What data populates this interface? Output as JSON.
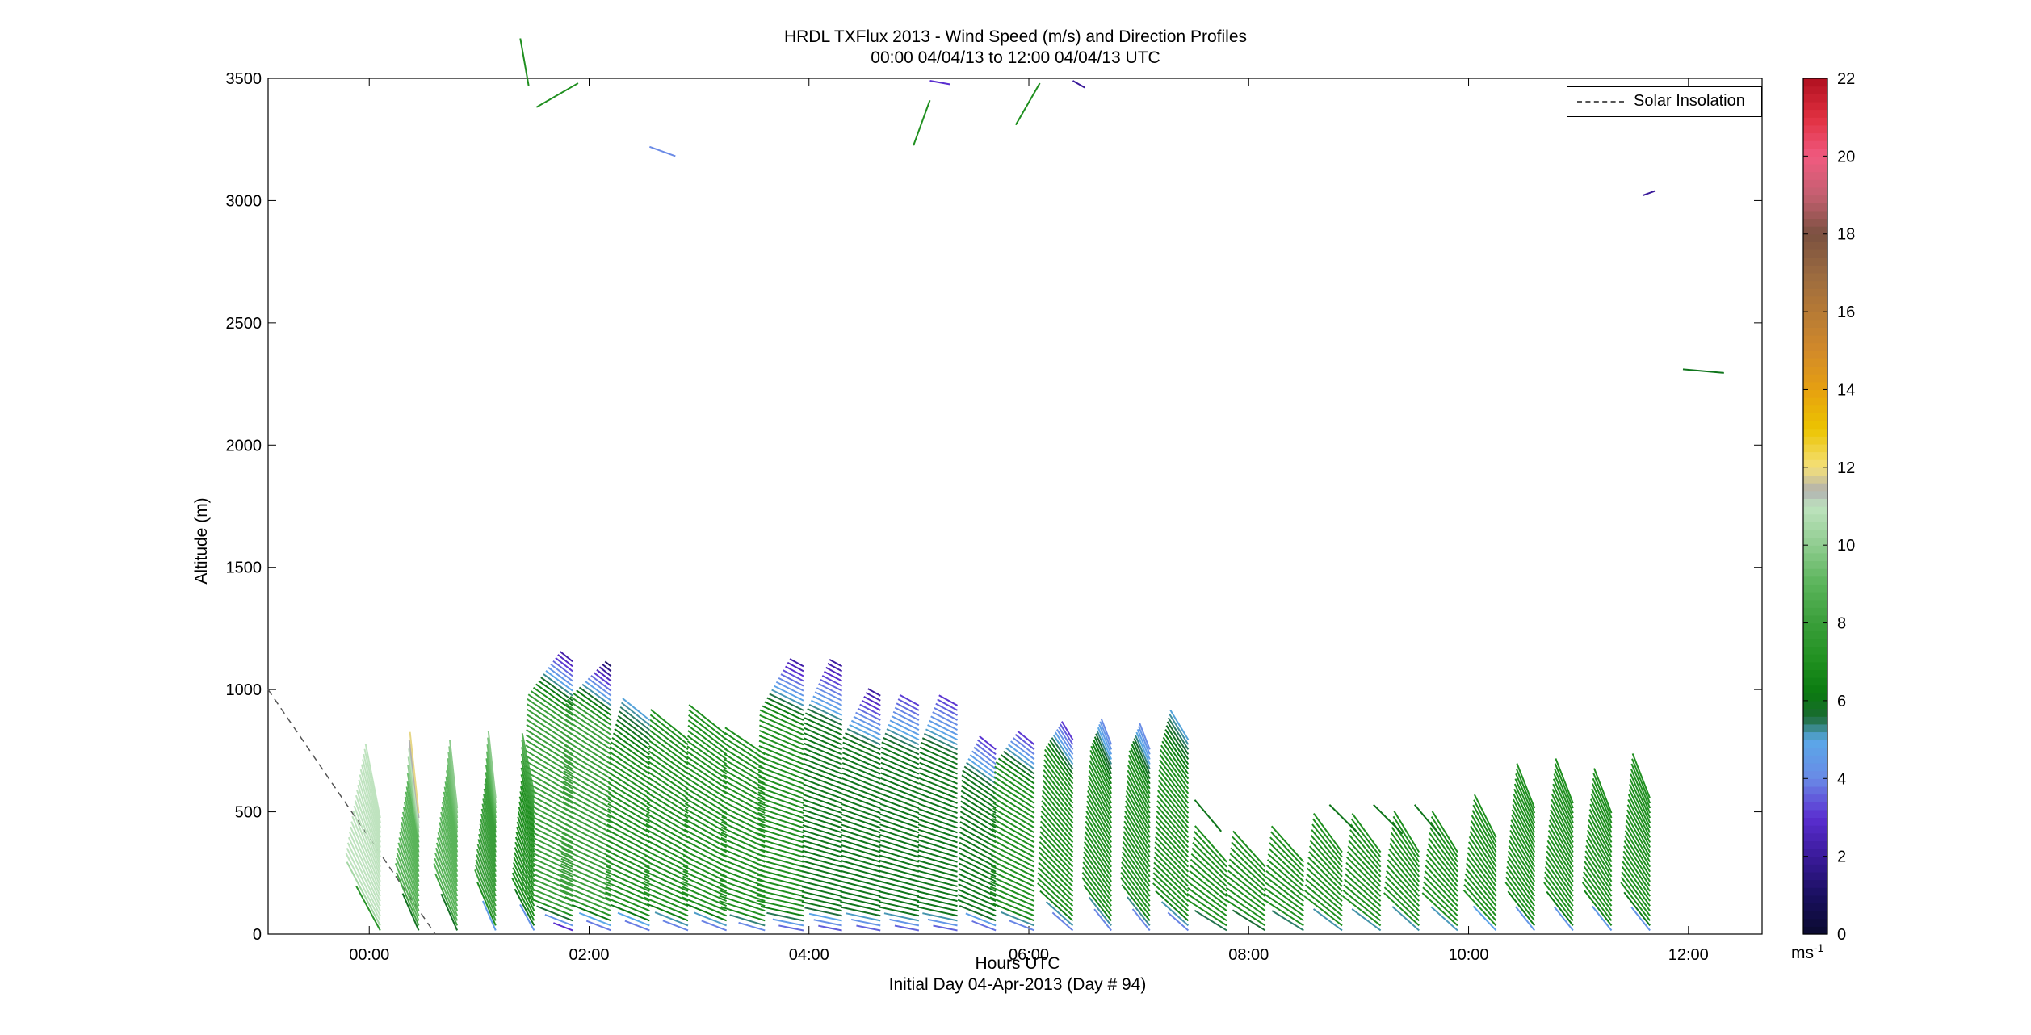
{
  "title": {
    "line1": "HRDL TXFlux 2013 - Wind Speed (m/s) and Direction Profiles",
    "line2": "00:00 04/04/13 to 12:00 04/04/13  UTC"
  },
  "axes": {
    "xlabel": "Hours UTC",
    "xlabel2": "Initial Day 04-Apr-2013 (Day # 94)",
    "ylabel": "Altitude (m)",
    "x_range_hours": [
      -0.92,
      12.67
    ],
    "y_range_m": [
      0,
      3500
    ],
    "x_ticks": [
      {
        "hour": 0,
        "label": "00:00"
      },
      {
        "hour": 2,
        "label": "02:00"
      },
      {
        "hour": 4,
        "label": "04:00"
      },
      {
        "hour": 6,
        "label": "06:00"
      },
      {
        "hour": 8,
        "label": "08:00"
      },
      {
        "hour": 10,
        "label": "10:00"
      },
      {
        "hour": 12,
        "label": "12:00"
      }
    ],
    "y_ticks": [
      0,
      500,
      1000,
      1500,
      2000,
      2500,
      3000,
      3500
    ]
  },
  "legend": {
    "entries": [
      {
        "label": "Solar Insolation",
        "style": "dashed",
        "color": "#555555"
      }
    ],
    "placement": "top-right"
  },
  "colorbar": {
    "unit": "ms",
    "unit_exponent": "-1",
    "range": [
      0,
      22
    ],
    "ticks": [
      0,
      2,
      4,
      6,
      8,
      10,
      12,
      14,
      16,
      18,
      20,
      22
    ]
  },
  "chart_data": {
    "type": "scatter",
    "mark": "wind vector profiles (arrows colored by speed)",
    "x_unit": "hours UTC",
    "y_unit": "m",
    "solar_insolation_line": {
      "x": [
        -0.92,
        0.6
      ],
      "y": [
        1000,
        0
      ]
    },
    "profiles": [
      {
        "hour": 0.1,
        "top": 480,
        "dir": 340,
        "low": 5,
        "mid": 11,
        "upper": 11
      },
      {
        "hour": 0.45,
        "top": 500,
        "dir": 345,
        "low": 4,
        "mid": 9,
        "upper": 12
      },
      {
        "hour": 0.8,
        "top": 520,
        "dir": 345,
        "low": 4,
        "mid": 9,
        "upper": 10
      },
      {
        "hour": 1.15,
        "top": 560,
        "dir": 345,
        "low": 3,
        "mid": 8,
        "upper": 10
      },
      {
        "hour": 1.5,
        "top": 580,
        "dir": 340,
        "low": 3,
        "mid": 7,
        "upper": 9
      },
      {
        "hour": 1.85,
        "top": 1130,
        "dir": 300,
        "low": 2,
        "mid": 8,
        "upper": 2
      },
      {
        "hour": 2.2,
        "top": 1100,
        "dir": 300,
        "low": 3,
        "mid": 8,
        "upper": 1
      },
      {
        "hour": 2.55,
        "top": 880,
        "dir": 300,
        "low": 3,
        "mid": 7,
        "upper": 5
      },
      {
        "hour": 2.9,
        "top": 800,
        "dir": 300,
        "low": 3,
        "mid": 7,
        "upper": 7
      },
      {
        "hour": 3.25,
        "top": 830,
        "dir": 300,
        "low": 3,
        "mid": 7,
        "upper": 7
      },
      {
        "hour": 3.6,
        "top": 740,
        "dir": 295,
        "low": 3,
        "mid": 7,
        "upper": 7
      },
      {
        "hour": 3.95,
        "top": 1110,
        "dir": 290,
        "low": 3,
        "mid": 7,
        "upper": 2
      },
      {
        "hour": 4.3,
        "top": 1100,
        "dir": 290,
        "low": 3,
        "mid": 6,
        "upper": 2
      },
      {
        "hour": 4.65,
        "top": 980,
        "dir": 290,
        "low": 3,
        "mid": 6,
        "upper": 2
      },
      {
        "hour": 5.0,
        "top": 950,
        "dir": 290,
        "low": 3,
        "mid": 6,
        "upper": 3
      },
      {
        "hour": 5.35,
        "top": 940,
        "dir": 290,
        "low": 3,
        "mid": 6,
        "upper": 3
      },
      {
        "hour": 5.7,
        "top": 760,
        "dir": 300,
        "low": 3,
        "mid": 6,
        "upper": 3
      },
      {
        "hour": 6.05,
        "top": 780,
        "dir": 300,
        "low": 3,
        "mid": 7,
        "upper": 3
      },
      {
        "hour": 6.4,
        "top": 800,
        "dir": 320,
        "low": 3,
        "mid": 7,
        "upper": 3
      },
      {
        "hour": 6.75,
        "top": 780,
        "dir": 330,
        "low": 3,
        "mid": 7,
        "upper": 4
      },
      {
        "hour": 7.1,
        "top": 760,
        "dir": 330,
        "low": 3,
        "mid": 7,
        "upper": 4
      },
      {
        "hour": 7.45,
        "top": 800,
        "dir": 320,
        "low": 3,
        "mid": 7,
        "upper": 5
      },
      {
        "hour": 7.8,
        "top": 300,
        "dir": 310,
        "low": 3,
        "mid": 7,
        "upper": 7
      },
      {
        "hour": 8.15,
        "top": 290,
        "dir": 310,
        "low": 3,
        "mid": 7,
        "upper": 7
      },
      {
        "hour": 8.5,
        "top": 310,
        "dir": 310,
        "low": 3,
        "mid": 7,
        "upper": 7
      },
      {
        "hour": 8.85,
        "top": 340,
        "dir": 315,
        "low": 3,
        "mid": 7,
        "upper": 7
      },
      {
        "hour": 9.2,
        "top": 340,
        "dir": 315,
        "low": 3,
        "mid": 7,
        "upper": 7
      },
      {
        "hour": 9.55,
        "top": 340,
        "dir": 320,
        "low": 3,
        "mid": 7,
        "upper": 7
      },
      {
        "hour": 9.9,
        "top": 350,
        "dir": 320,
        "low": 3,
        "mid": 7,
        "upper": 7
      },
      {
        "hour": 10.25,
        "top": 410,
        "dir": 325,
        "low": 3,
        "mid": 7,
        "upper": 7
      },
      {
        "hour": 10.6,
        "top": 530,
        "dir": 330,
        "low": 3,
        "mid": 7,
        "upper": 7
      },
      {
        "hour": 10.95,
        "top": 540,
        "dir": 330,
        "low": 3,
        "mid": 7,
        "upper": 7
      },
      {
        "hour": 11.3,
        "top": 500,
        "dir": 330,
        "low": 3,
        "mid": 7,
        "upper": 7
      },
      {
        "hour": 11.65,
        "top": 560,
        "dir": 330,
        "low": 3,
        "mid": 7,
        "upper": 7
      }
    ],
    "isolated_vectors": [
      {
        "hour": 1.45,
        "alt": 3470,
        "speed": 7,
        "dir": 350
      },
      {
        "hour": 1.9,
        "alt": 3480,
        "speed": 7,
        "dir": 240
      },
      {
        "hour": 2.55,
        "alt": 3220,
        "speed": 4,
        "dir": 110
      },
      {
        "hour": 5.1,
        "alt": 3410,
        "speed": 7,
        "dir": 200
      },
      {
        "hour": 5.1,
        "alt": 3490,
        "speed": 3,
        "dir": 100
      },
      {
        "hour": 6.1,
        "alt": 3480,
        "speed": 7,
        "dir": 210
      },
      {
        "hour": 6.4,
        "alt": 3490,
        "speed": 2,
        "dir": 120
      },
      {
        "hour": 11.7,
        "alt": 3040,
        "speed": 2,
        "dir": 250
      },
      {
        "hour": 11.95,
        "alt": 2310,
        "speed": 6,
        "dir": 95
      },
      {
        "hour": 7.75,
        "alt": 420,
        "speed": 6,
        "dir": 320
      },
      {
        "hour": 9.0,
        "alt": 410,
        "speed": 6,
        "dir": 315
      },
      {
        "hour": 9.4,
        "alt": 410,
        "speed": 6,
        "dir": 315
      },
      {
        "hour": 9.75,
        "alt": 400,
        "speed": 6,
        "dir": 320
      }
    ]
  }
}
